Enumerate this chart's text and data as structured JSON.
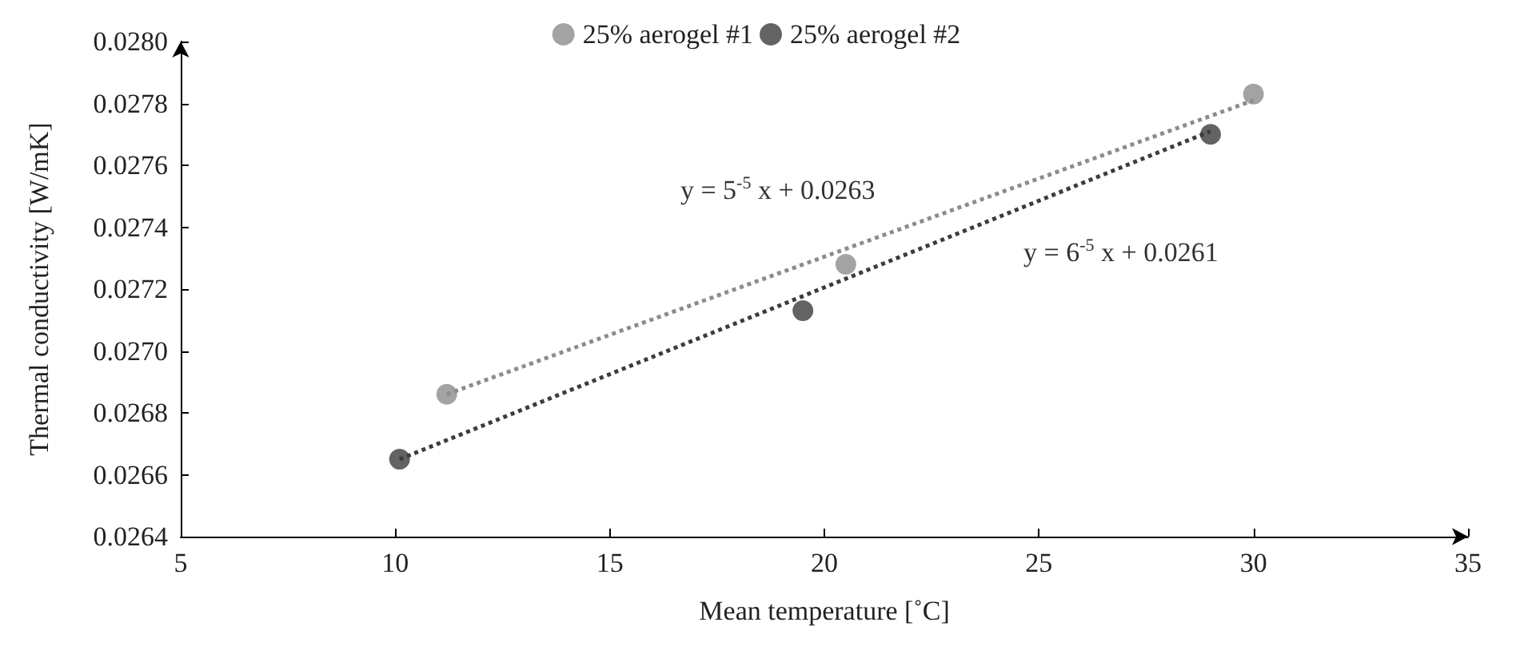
{
  "chart_data": {
    "type": "scatter",
    "xlabel": "Mean temperature [˚C]",
    "ylabel": "Thermal conductivity [W/mK]",
    "xlim": [
      5,
      35
    ],
    "xticks": [
      5,
      10,
      15,
      20,
      25,
      30,
      35
    ],
    "ylim": [
      0.0264,
      0.028
    ],
    "yticks": [
      {
        "value": 0.0264,
        "label": "0.0264"
      },
      {
        "value": 0.0266,
        "label": "0.0266"
      },
      {
        "value": 0.0268,
        "label": "0.0268"
      },
      {
        "value": 0.027,
        "label": "0.0270"
      },
      {
        "value": 0.0272,
        "label": "0.0272"
      },
      {
        "value": 0.0274,
        "label": "0.0274"
      },
      {
        "value": 0.0276,
        "label": "0.0276"
      },
      {
        "value": 0.0278,
        "label": "0.0278"
      },
      {
        "value": 0.028,
        "label": "0.0280"
      }
    ],
    "grid": false,
    "legend": "top",
    "marker": "circle",
    "series": [
      {
        "name": "25% aerogel #1",
        "color": "#8c8c8c",
        "x": [
          11.2,
          20.5,
          30
        ],
        "values": [
          0.02686,
          0.02728,
          0.02783
        ]
      },
      {
        "name": "25% aerogel #2",
        "color": "#3c3c3c",
        "x": [
          10.1,
          19.5,
          29
        ],
        "values": [
          0.02665,
          0.02713,
          0.0277
        ]
      },
      {
        "type": "line",
        "color": "#8c8c8c",
        "x": [
          11.2,
          30
        ],
        "values": [
          0.02686,
          0.02781
        ],
        "marker": "none",
        "line_style": "dotted"
      },
      {
        "type": "line",
        "color": "#3c3c3c",
        "x": [
          10.1,
          29
        ],
        "values": [
          0.02665,
          0.02771
        ],
        "marker": "none",
        "line_style": "dotted"
      }
    ],
    "annotations": [
      "y = 5$^{-5}$ x + 0.0263",
      "y = 6$^{-5}$ x + 0.0261"
    ]
  }
}
